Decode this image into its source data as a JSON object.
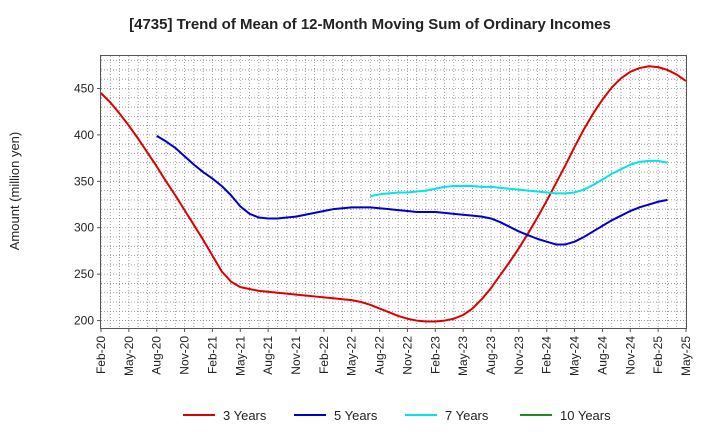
{
  "chart_data": {
    "type": "line",
    "title": "[4735]  Trend of Mean of 12-Month Moving Sum of Ordinary Incomes",
    "xlabel": "",
    "ylabel": "Amount (million yen)",
    "ylim": [
      192,
      485
    ],
    "yticks": [
      200,
      250,
      300,
      350,
      400,
      450
    ],
    "grid": true,
    "legend_position": "bottom",
    "x_tick_labels": [
      "Feb-20",
      "May-20",
      "Aug-20",
      "Nov-20",
      "Feb-21",
      "May-21",
      "Aug-21",
      "Nov-21",
      "Feb-22",
      "May-22",
      "Aug-22",
      "Nov-22",
      "Feb-23",
      "May-23",
      "Aug-23",
      "Nov-23",
      "Feb-24",
      "May-24",
      "Aug-24",
      "Nov-24",
      "Feb-25",
      "May-25"
    ],
    "x_count": 64,
    "series": [
      {
        "name": "3 Years",
        "color": "#dd0000",
        "start_index": 0,
        "values": [
          445,
          435,
          423,
          410,
          396,
          381,
          366,
          350,
          335,
          319,
          303,
          287,
          270,
          253,
          242,
          236,
          234,
          232,
          231,
          230,
          229,
          228,
          227,
          226,
          225,
          224,
          223,
          222,
          220,
          217,
          213,
          209,
          205,
          202,
          200,
          199,
          199,
          200,
          202,
          206,
          213,
          223,
          235,
          249,
          263,
          278,
          294,
          311,
          329,
          348,
          367,
          387,
          406,
          423,
          438,
          451,
          461,
          468,
          472,
          474,
          473,
          470,
          465,
          458
        ]
      },
      {
        "name": "5 Years",
        "color": "#0000cc",
        "start_index": 6,
        "values": [
          399,
          393,
          386,
          377,
          368,
          360,
          353,
          345,
          335,
          323,
          315,
          311,
          310,
          310,
          311,
          312,
          314,
          316,
          318,
          320,
          321,
          322,
          322,
          322,
          321,
          320,
          319,
          318,
          317,
          317,
          317,
          316,
          315,
          314,
          313,
          312,
          310,
          306,
          301,
          296,
          292,
          288,
          285,
          282,
          282,
          285,
          290,
          296,
          302,
          308,
          313,
          318,
          322,
          325,
          328,
          330
        ]
      },
      {
        "name": "7 Years",
        "color": "#00e5e5",
        "start_index": 29,
        "values": [
          334,
          336,
          337,
          338,
          338,
          339,
          340,
          342,
          344,
          345,
          345,
          345,
          344,
          344,
          343,
          342,
          341,
          340,
          339,
          338,
          337,
          337,
          338,
          341,
          346,
          352,
          358,
          363,
          368,
          371,
          372,
          372,
          370
        ]
      },
      {
        "name": "10 Years",
        "color": "#228B22",
        "start_index": 0,
        "values": []
      }
    ]
  }
}
